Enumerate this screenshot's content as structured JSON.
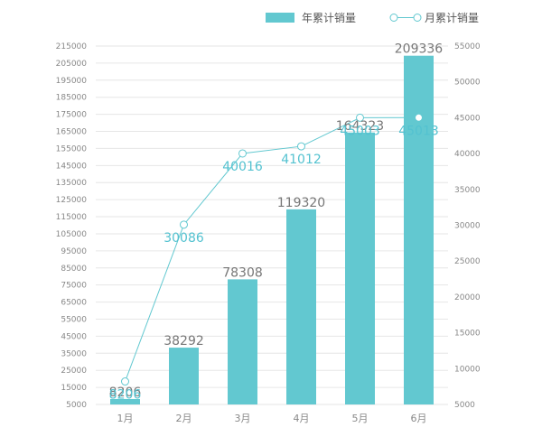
{
  "colors": {
    "bar": "#62c8d0",
    "line": "#62c8d0",
    "grid": "#e6e6e6",
    "axis_text": "#888888"
  },
  "chart_data": {
    "type": "bar",
    "categories": [
      "1月",
      "2月",
      "3月",
      "4月",
      "5月",
      "6月"
    ],
    "series": [
      {
        "name": "年累计销量",
        "type": "bar",
        "axis": "left",
        "values": [
          8206,
          38292,
          78308,
          119320,
          164323,
          209336
        ]
      },
      {
        "name": "月累计销量",
        "type": "line",
        "axis": "right",
        "values": [
          8206,
          30086,
          40016,
          41012,
          45003,
          45013
        ]
      }
    ],
    "left_axis": {
      "ylim": [
        5000,
        215000
      ],
      "ticks": [
        5000,
        15000,
        25000,
        35000,
        45000,
        55000,
        65000,
        75000,
        85000,
        95000,
        105000,
        115000,
        125000,
        135000,
        145000,
        155000,
        165000,
        175000,
        185000,
        195000,
        205000,
        215000
      ]
    },
    "right_axis": {
      "ylim": [
        5000,
        55000
      ],
      "ticks": [
        5000,
        10000,
        15000,
        20000,
        25000,
        30000,
        35000,
        40000,
        45000,
        50000,
        55000
      ]
    },
    "grid": true,
    "legend": "top-right"
  }
}
